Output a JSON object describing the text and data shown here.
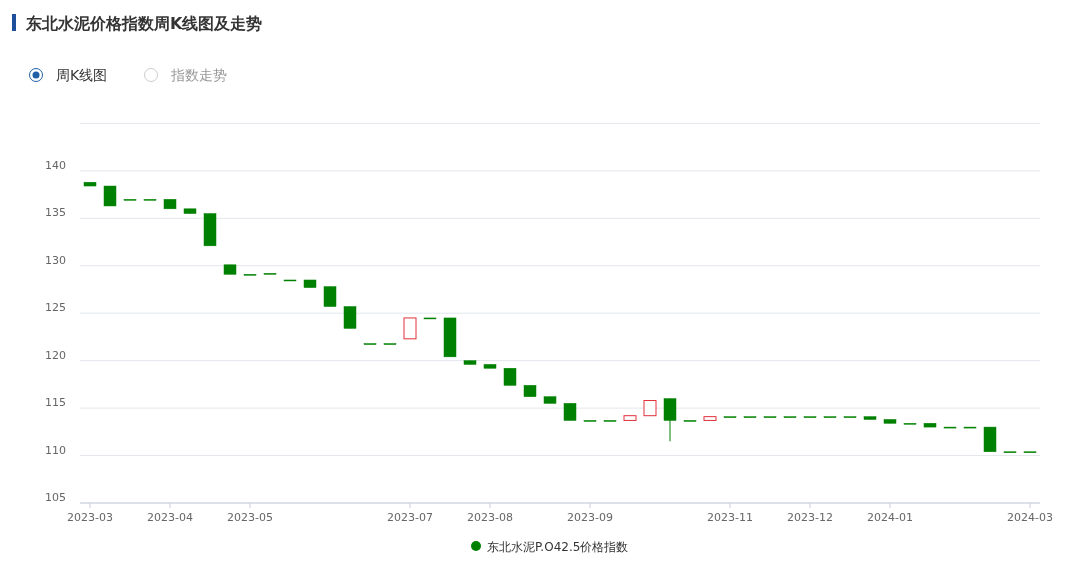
{
  "chart_data": {
    "type": "candlestick",
    "title": "东北水泥价格指数周K线图及走势",
    "annotations": [
      "周K线图",
      "指数走势"
    ],
    "categories": [
      "2023-03",
      null,
      null,
      null,
      "2023-04",
      null,
      null,
      null,
      "2023-05",
      null,
      null,
      null,
      null,
      null,
      null,
      null,
      "2023-07",
      null,
      null,
      null,
      "2023-08",
      null,
      null,
      null,
      null,
      "2023-09",
      null,
      null,
      null,
      null,
      null,
      null,
      "2023-11",
      null,
      null,
      null,
      "2023-12",
      null,
      null,
      null,
      "2024-01",
      null,
      null,
      null,
      null,
      null,
      null,
      "2024-03"
    ],
    "series": [
      {
        "name": "东北水泥P.O42.5价格指数",
        "color": "#008000",
        "colors": [
          "#008000",
          "#008000",
          "#008000",
          "#008000",
          "#008000",
          "#008000",
          "#008000",
          "#008000",
          "#008000",
          "#008000",
          "#008000",
          "#008000",
          "#008000",
          "#008000",
          "#008000",
          "#008000",
          "#e0313b",
          "#008000",
          "#008000",
          "#008000",
          "#008000",
          "#008000",
          "#008000",
          "#008000",
          "#008000",
          "#008000",
          "#008000",
          "#e0313b",
          "#e0313b",
          "#008000",
          "#008000",
          "#e0313b",
          "#008000",
          "#008000",
          "#008000",
          "#008000",
          "#008000",
          "#008000",
          "#008000",
          "#008000",
          "#008000",
          "#008000",
          "#008000",
          "#008000",
          "#008000",
          "#008000",
          "#008000",
          "#008000"
        ],
        "ohlc": [
          [
            138.8,
            138.8,
            138.4,
            138.4
          ],
          [
            138.4,
            138.4,
            136.3,
            136.3
          ],
          [
            137.0,
            137.0,
            137.0,
            137.0
          ],
          [
            137.0,
            137.0,
            137.0,
            137.0
          ],
          [
            137.0,
            137.0,
            136.0,
            136.0
          ],
          [
            136.0,
            136.0,
            135.5,
            135.5
          ],
          [
            135.5,
            135.5,
            132.1,
            132.1
          ],
          [
            130.1,
            130.1,
            129.1,
            129.1
          ],
          [
            129.1,
            129.1,
            129.1,
            129.1
          ],
          [
            129.2,
            129.2,
            129.2,
            129.2
          ],
          [
            128.5,
            128.5,
            128.5,
            128.5
          ],
          [
            128.5,
            128.5,
            127.7,
            127.7
          ],
          [
            127.8,
            127.8,
            125.7,
            125.7
          ],
          [
            125.7,
            125.7,
            123.4,
            123.4
          ],
          [
            121.8,
            121.8,
            121.8,
            121.8
          ],
          [
            121.8,
            121.8,
            121.8,
            121.8
          ],
          [
            122.3,
            124.5,
            122.3,
            124.5
          ],
          [
            124.5,
            124.5,
            124.5,
            124.5
          ],
          [
            124.5,
            124.5,
            120.4,
            120.4
          ],
          [
            120.0,
            120.0,
            119.6,
            119.6
          ],
          [
            119.6,
            119.6,
            119.2,
            119.2
          ],
          [
            119.2,
            119.2,
            117.4,
            117.4
          ],
          [
            117.4,
            117.4,
            116.2,
            116.2
          ],
          [
            116.2,
            116.2,
            115.5,
            115.5
          ],
          [
            115.5,
            115.5,
            113.7,
            113.7
          ],
          [
            113.7,
            113.7,
            113.7,
            113.7
          ],
          [
            113.7,
            113.7,
            113.7,
            113.7
          ],
          [
            113.7,
            114.2,
            113.7,
            114.2
          ],
          [
            114.2,
            115.8,
            114.2,
            115.8
          ],
          [
            116.0,
            116.0,
            111.5,
            113.7
          ],
          [
            113.7,
            113.7,
            113.7,
            113.7
          ],
          [
            113.7,
            114.1,
            113.7,
            114.1
          ],
          [
            114.1,
            114.1,
            114.1,
            114.1
          ],
          [
            114.1,
            114.1,
            114.1,
            114.1
          ],
          [
            114.1,
            114.1,
            114.1,
            114.1
          ],
          [
            114.1,
            114.1,
            114.1,
            114.1
          ],
          [
            114.1,
            114.1,
            114.1,
            114.1
          ],
          [
            114.1,
            114.1,
            114.1,
            114.1
          ],
          [
            114.1,
            114.1,
            114.1,
            114.1
          ],
          [
            114.1,
            114.1,
            113.8,
            113.8
          ],
          [
            113.8,
            113.8,
            113.4,
            113.4
          ],
          [
            113.4,
            113.4,
            113.4,
            113.4
          ],
          [
            113.4,
            113.4,
            113.0,
            113.0
          ],
          [
            113.0,
            113.0,
            113.0,
            113.0
          ],
          [
            113.0,
            113.0,
            113.0,
            113.0
          ],
          [
            113.0,
            113.0,
            110.4,
            110.4
          ],
          [
            110.4,
            110.4,
            110.4,
            110.4
          ],
          [
            110.4,
            110.4,
            110.4,
            110.4
          ]
        ]
      }
    ],
    "ylim": [
      105,
      145
    ],
    "yticks": [
      105,
      110,
      115,
      120,
      125,
      130,
      135,
      140,
      {
        "value": 145,
        "label": null
      }
    ],
    "grid": "y",
    "legend": "bottom"
  }
}
